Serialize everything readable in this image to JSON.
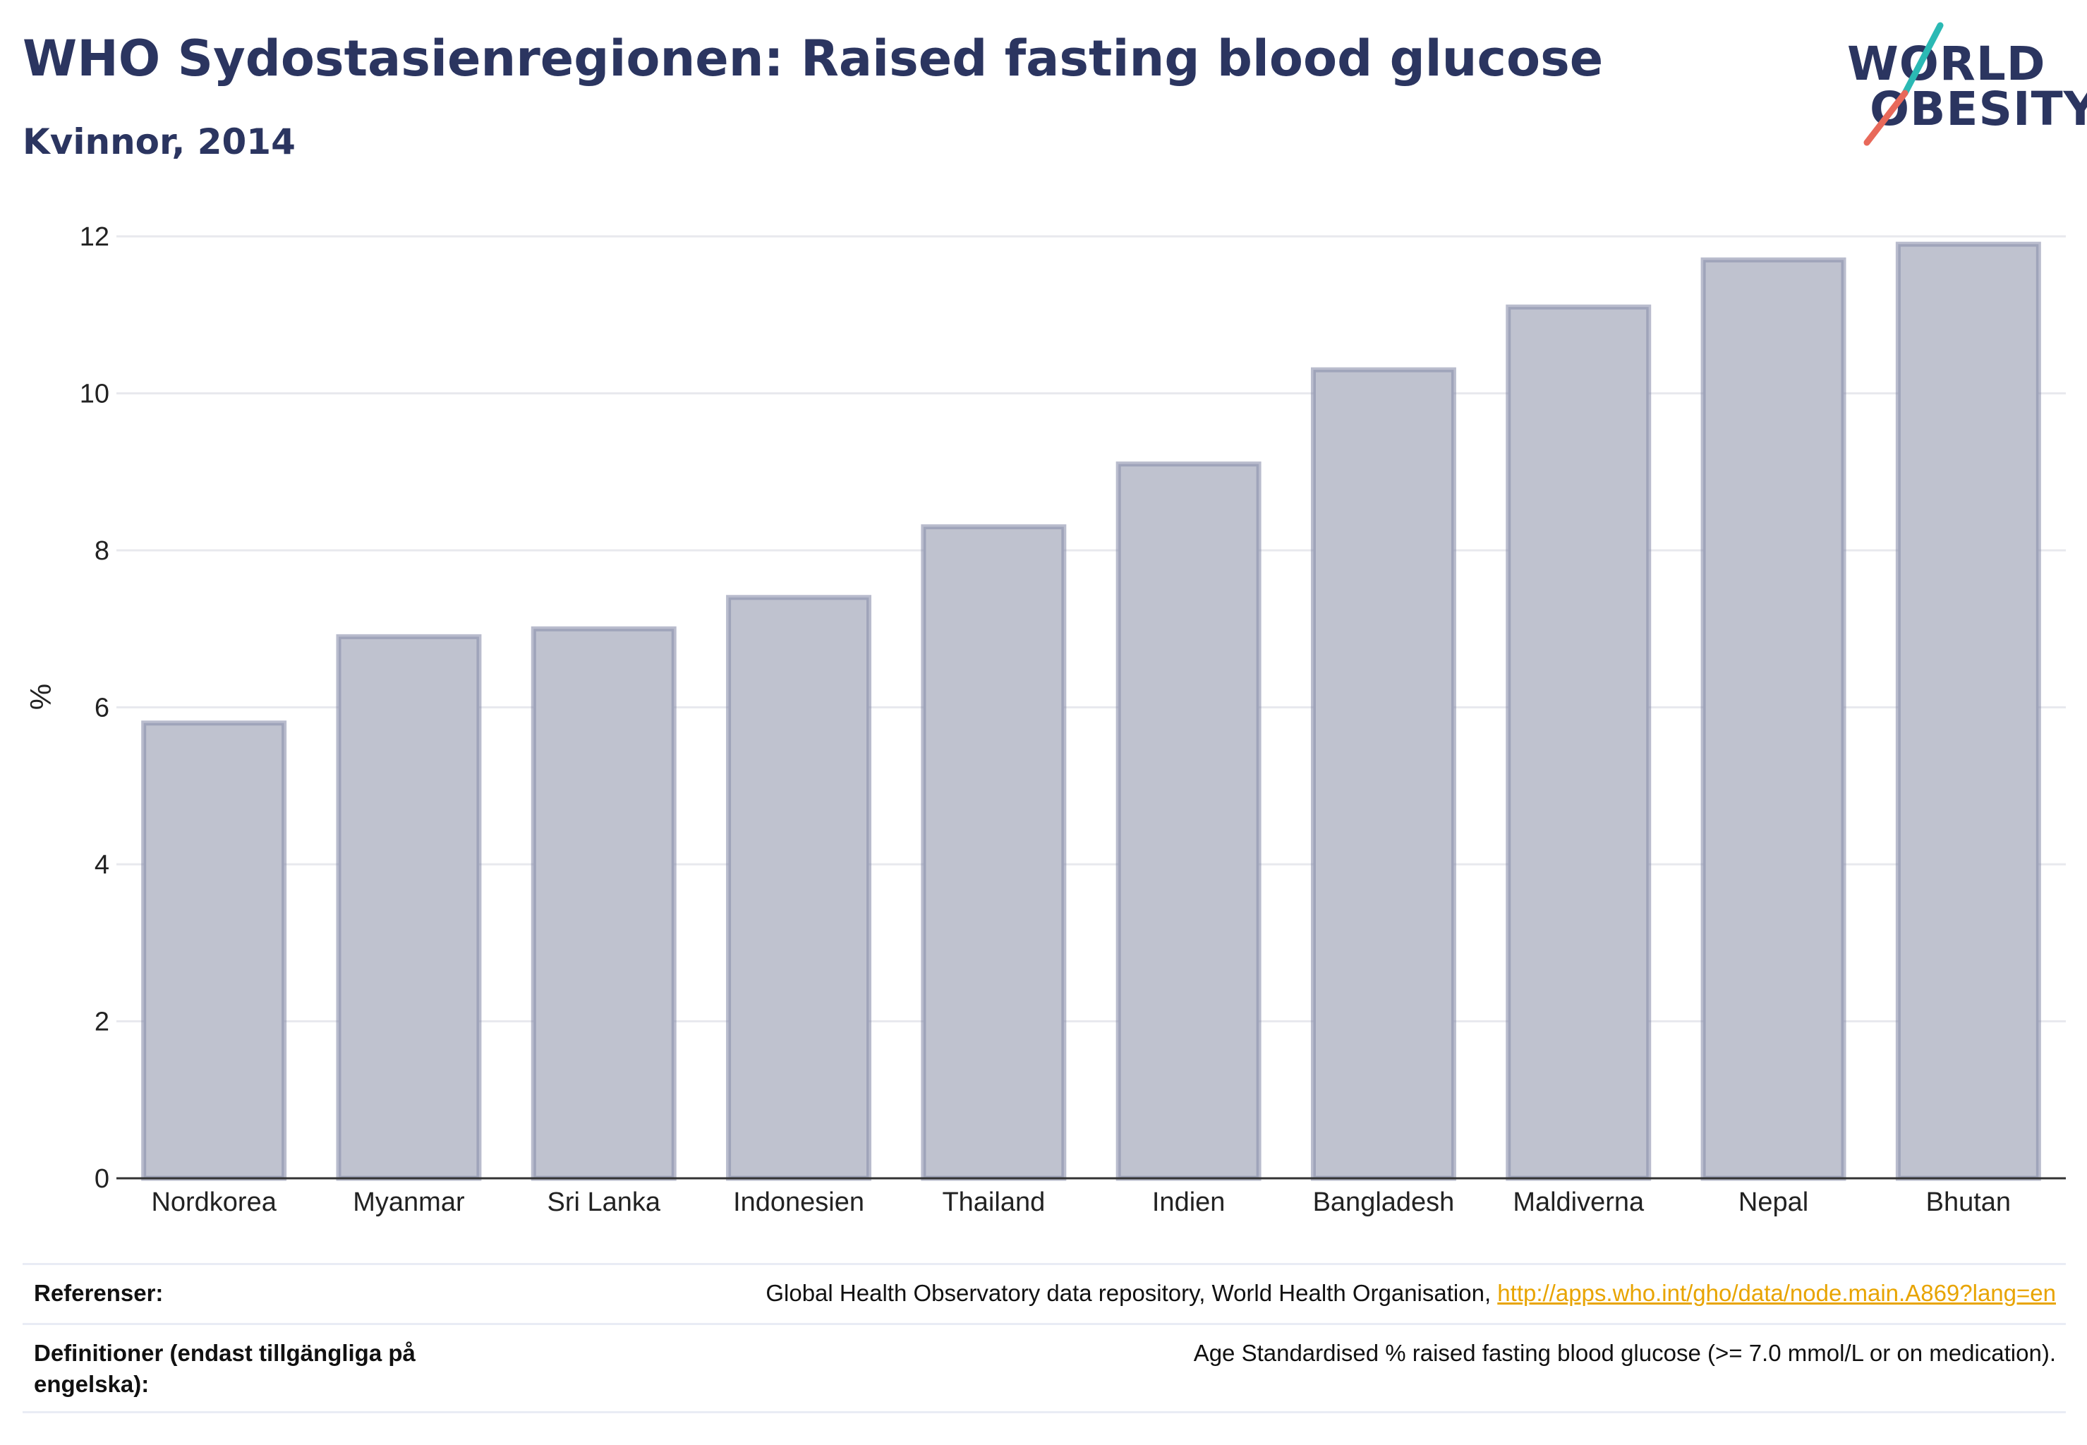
{
  "header": {
    "title": "WHO Sydostasienregionen: Raised fasting blood glucose",
    "subtitle": "Kvinnor, 2014"
  },
  "logo": {
    "line1": "WORLD",
    "line2": "OBESITY",
    "colors": {
      "slash_top": "#2bb9b4",
      "slash_bottom": "#e8695a",
      "text": "#2b3560"
    }
  },
  "chart_data": {
    "type": "bar",
    "categories": [
      "Nordkorea",
      "Myanmar",
      "Sri Lanka",
      "Indonesien",
      "Thailand",
      "Indien",
      "Bangladesh",
      "Maldiverna",
      "Nepal",
      "Bhutan"
    ],
    "values": [
      5.8,
      6.9,
      7.0,
      7.4,
      8.3,
      9.1,
      10.3,
      11.1,
      11.7,
      11.9
    ],
    "ylabel": "%",
    "xlabel": "",
    "ylim": [
      0,
      12
    ],
    "yticks": [
      0,
      2,
      4,
      6,
      8,
      10,
      12
    ],
    "grid": true,
    "colors": {
      "bar_fill": "#bfc2cf",
      "bar_stroke": "#8a90ac",
      "grid": "#e8e9ee",
      "axis": "#333333"
    }
  },
  "references": {
    "refs_label": "Referenser:",
    "refs_text": "Global Health Observatory data repository, World Health Organisation, ",
    "refs_link": "http://apps.who.int/gho/data/node.main.A869?lang=en",
    "defs_label": "Definitioner (endast tillgängliga på engelska):",
    "defs_text": "Age Standardised % raised fasting blood glucose (>= 7.0 mmol/L or on medication)."
  }
}
